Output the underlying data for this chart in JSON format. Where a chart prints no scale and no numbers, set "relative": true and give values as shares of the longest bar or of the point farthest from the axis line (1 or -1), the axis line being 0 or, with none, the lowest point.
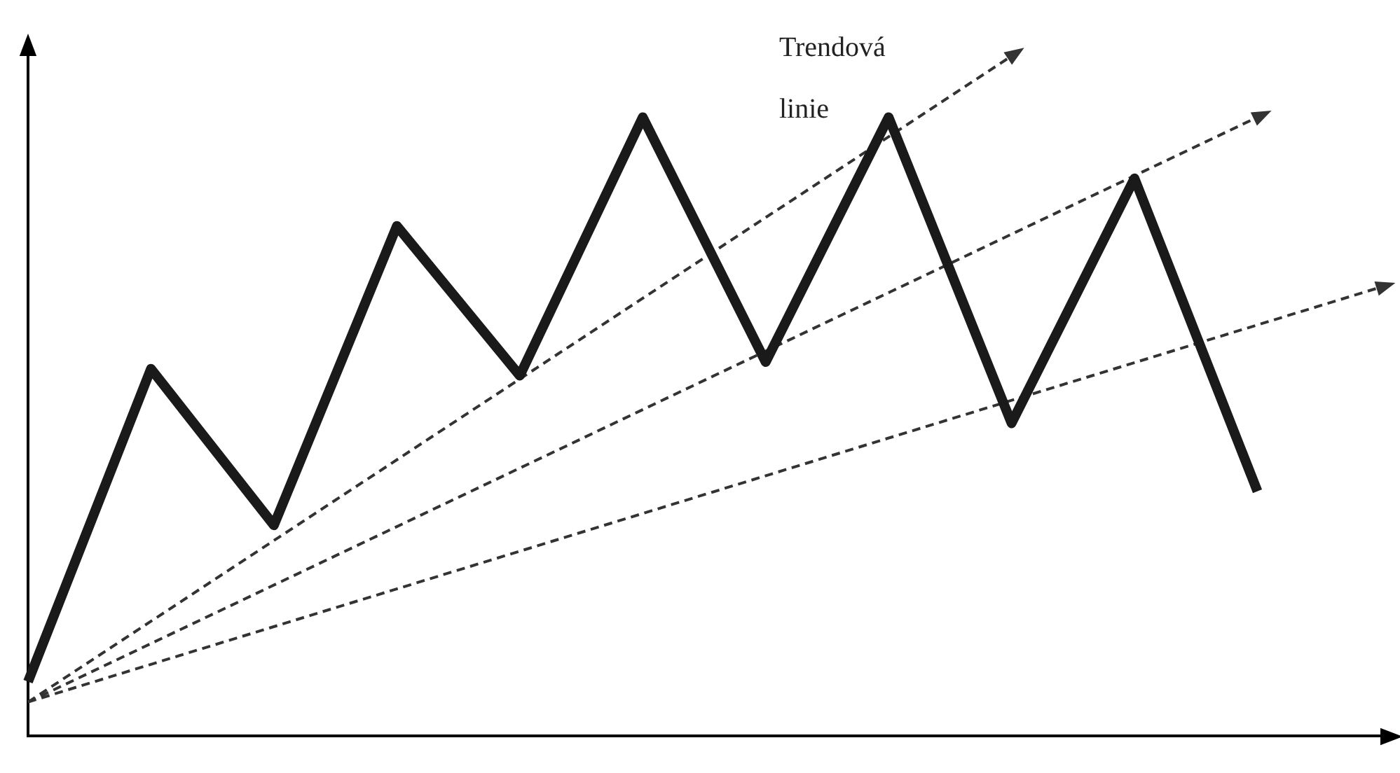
{
  "chart_data": {
    "type": "line",
    "relative": true,
    "categories": [
      null,
      null,
      null,
      null,
      null,
      null,
      null,
      null,
      null,
      null,
      null,
      null
    ],
    "series": [
      {
        "color": "#1a1a1a",
        "line_style": "solid",
        "values": [
          0.08,
          0.54,
          0.31,
          0.75,
          0.53,
          0.91,
          0.55,
          0.91,
          0.46,
          0.82,
          0.36,
          null
        ]
      },
      {
        "color": "#333333",
        "line_style": "dashed",
        "values": [
          0.05,
          null,
          null,
          null,
          null,
          null,
          null,
          null,
          1.0,
          null,
          null,
          null
        ]
      },
      {
        "color": "#333333",
        "line_style": "dashed",
        "values": [
          0.05,
          null,
          null,
          null,
          null,
          null,
          null,
          null,
          null,
          null,
          0.91,
          null
        ]
      },
      {
        "color": "#333333",
        "line_style": "dashed",
        "values": [
          0.05,
          null,
          null,
          null,
          null,
          null,
          null,
          null,
          null,
          null,
          null,
          0.66
        ]
      }
    ],
    "annotations": [
      "Trendová linie"
    ]
  }
}
